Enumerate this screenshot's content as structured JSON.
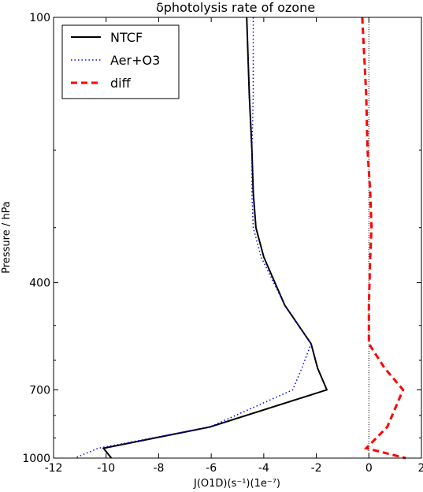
{
  "chart_data": {
    "type": "line",
    "title": "δphotolysis rate of ozone",
    "xlabel": "J(O1D)(s⁻¹)(1e⁻⁷)",
    "ylabel": "Pressure / hPa",
    "xlim": [
      -12,
      2
    ],
    "ylim": [
      1000,
      100
    ],
    "yscale": "log",
    "x_ticks": [
      -12,
      -10,
      -8,
      -6,
      -4,
      -2,
      0,
      2
    ],
    "x_tick_labels": [
      "-12",
      "-10",
      "-8",
      "-6",
      "-4",
      "-2",
      "0",
      "2"
    ],
    "y_ticks": [
      100,
      400,
      700,
      1000
    ],
    "y_tick_labels": [
      "100",
      "400",
      "700",
      "1000"
    ],
    "grid": false,
    "legend_position": "top-left",
    "reference_line": {
      "x": 0,
      "style": "dotted",
      "color": "#000000"
    },
    "series": [
      {
        "name": "NTCF",
        "color": "#000000",
        "style": "solid",
        "x": [
          -4.65,
          -4.55,
          -4.45,
          -4.4,
          -4.3,
          -4.0,
          -3.2,
          -2.2,
          -1.95,
          -1.6,
          -6.05,
          -10.1,
          -9.8
        ],
        "y": [
          100,
          150,
          200,
          250,
          300,
          350,
          450,
          550,
          625,
          700,
          850,
          950,
          1000
        ]
      },
      {
        "name": "Aer+O3",
        "color": "#0000ff",
        "style": "dotted",
        "x": [
          -4.4,
          -4.4,
          -4.45,
          -4.45,
          -4.4,
          -4.1,
          -3.2,
          -2.2,
          -2.55,
          -2.9,
          -6.05,
          -10.3,
          -11.2
        ],
        "y": [
          100,
          150,
          200,
          250,
          300,
          350,
          450,
          550,
          625,
          700,
          850,
          950,
          1000
        ]
      },
      {
        "name": "diff",
        "color": "#ff0000",
        "style": "dashed",
        "x": [
          -0.25,
          -0.1,
          -0.05,
          0.05,
          0.1,
          0.05,
          0.0,
          0.0,
          0.6,
          1.3,
          0.7,
          -0.1,
          1.4
        ],
        "y": [
          100,
          150,
          200,
          250,
          300,
          350,
          450,
          550,
          625,
          700,
          850,
          950,
          1000
        ]
      }
    ]
  }
}
